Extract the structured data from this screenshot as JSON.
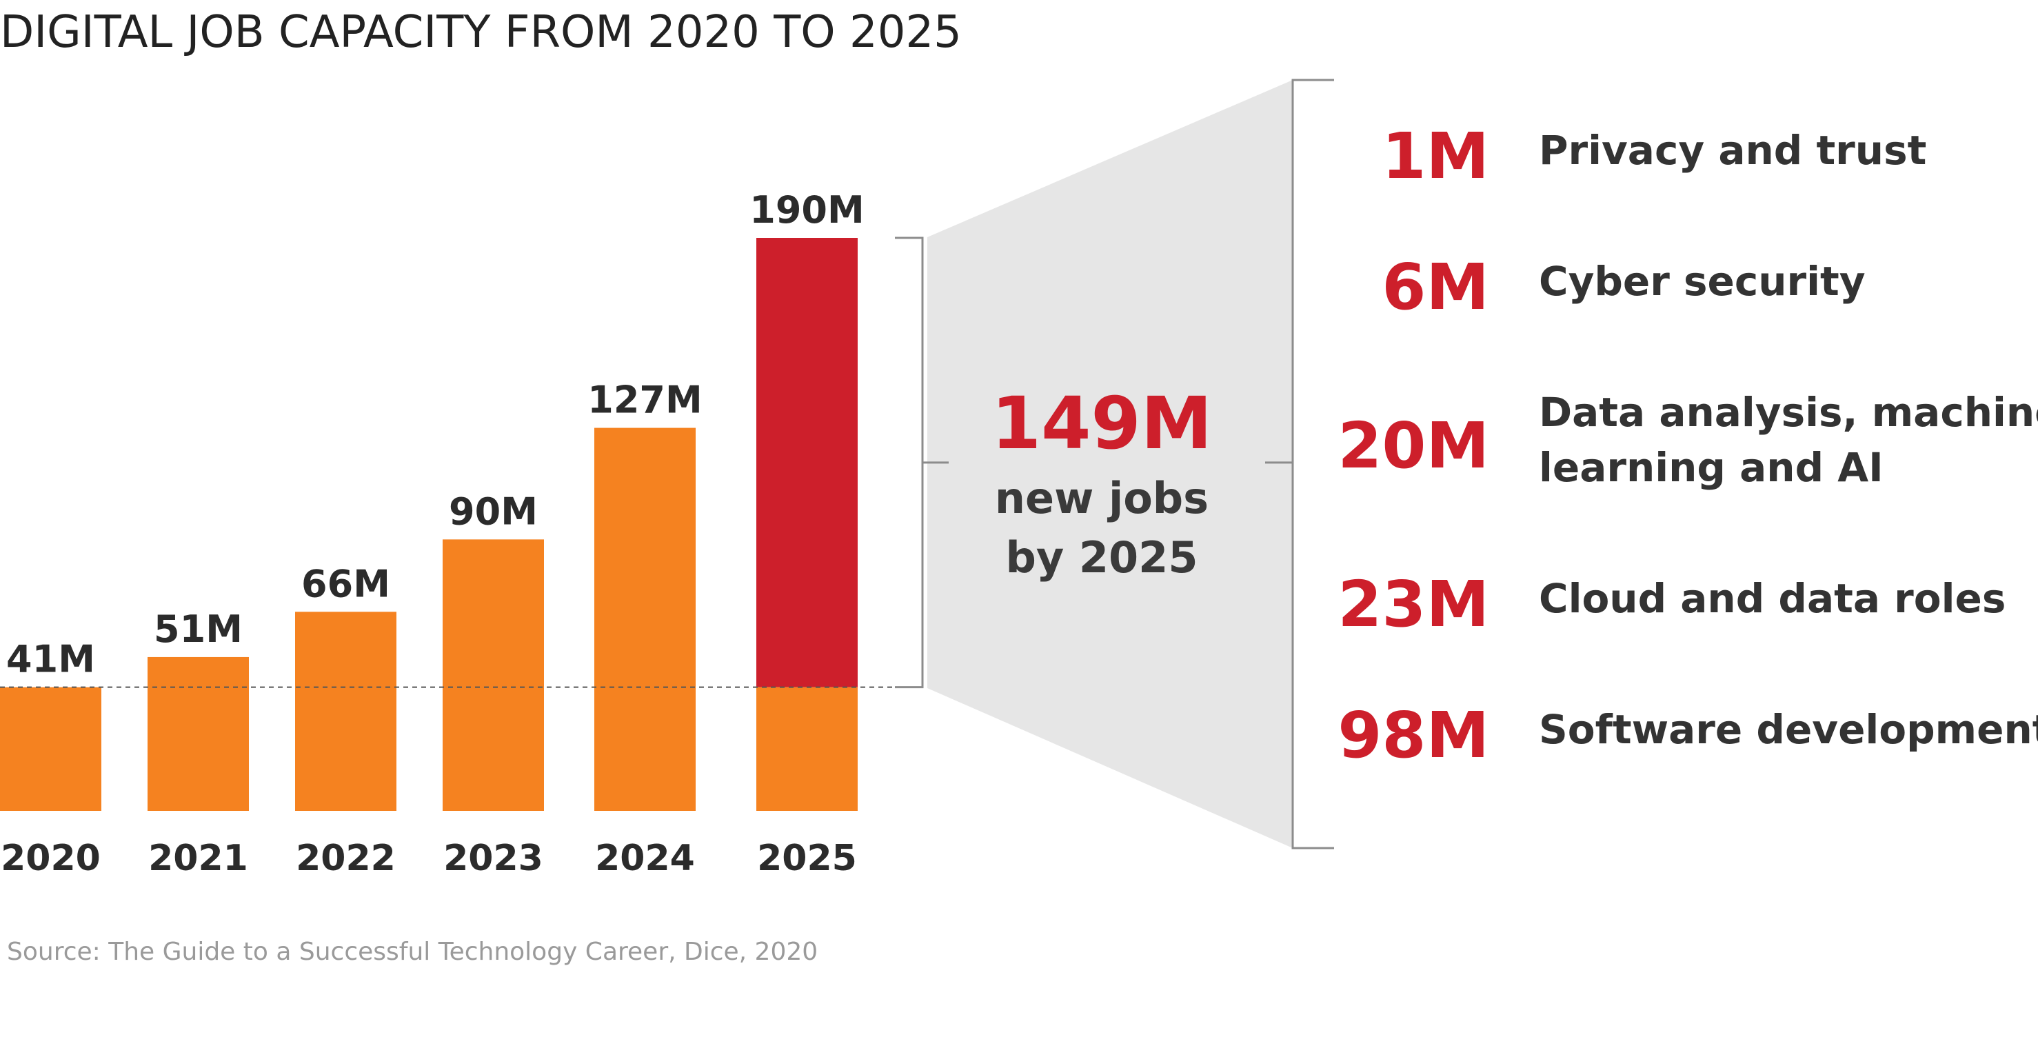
{
  "chart_data": {
    "type": "bar",
    "title": "DIGITAL JOB CAPACITY FROM 2020 TO 2025",
    "categories": [
      "2020",
      "2021",
      "2022",
      "2023",
      "2024",
      "2025"
    ],
    "values": [
      41,
      51,
      66,
      90,
      127,
      190
    ],
    "value_labels": [
      "41M",
      "51M",
      "66M",
      "90M",
      "127M",
      "190M"
    ],
    "baseline_value": 41,
    "highlight_index": 5,
    "xlabel": "",
    "ylabel": "",
    "grid": false,
    "legend": "none",
    "callout": {
      "value": "149M",
      "line1": "new jobs",
      "line2": "by 2025"
    },
    "breakdown": [
      {
        "value": 1,
        "value_label": "1M",
        "lines": [
          "Privacy and trust"
        ]
      },
      {
        "value": 6,
        "value_label": "6M",
        "lines": [
          "Cyber security"
        ]
      },
      {
        "value": 20,
        "value_label": "20M",
        "lines": [
          "Data analysis, machine",
          "learning and AI"
        ]
      },
      {
        "value": 23,
        "value_label": "23M",
        "lines": [
          "Cloud and data roles"
        ]
      },
      {
        "value": 98,
        "value_label": "98M",
        "lines": [
          "Software development"
        ]
      }
    ],
    "source": "Source: The Guide to a Successful Technology Career, Dice, 2020"
  },
  "colors": {
    "bar": "#f58220",
    "highlight": "#cd1f2b",
    "funnel": "#e6e6e6",
    "bracket": "#8c8c8c",
    "text": "#2b2b2b",
    "accent_text": "#cd1f2b"
  }
}
